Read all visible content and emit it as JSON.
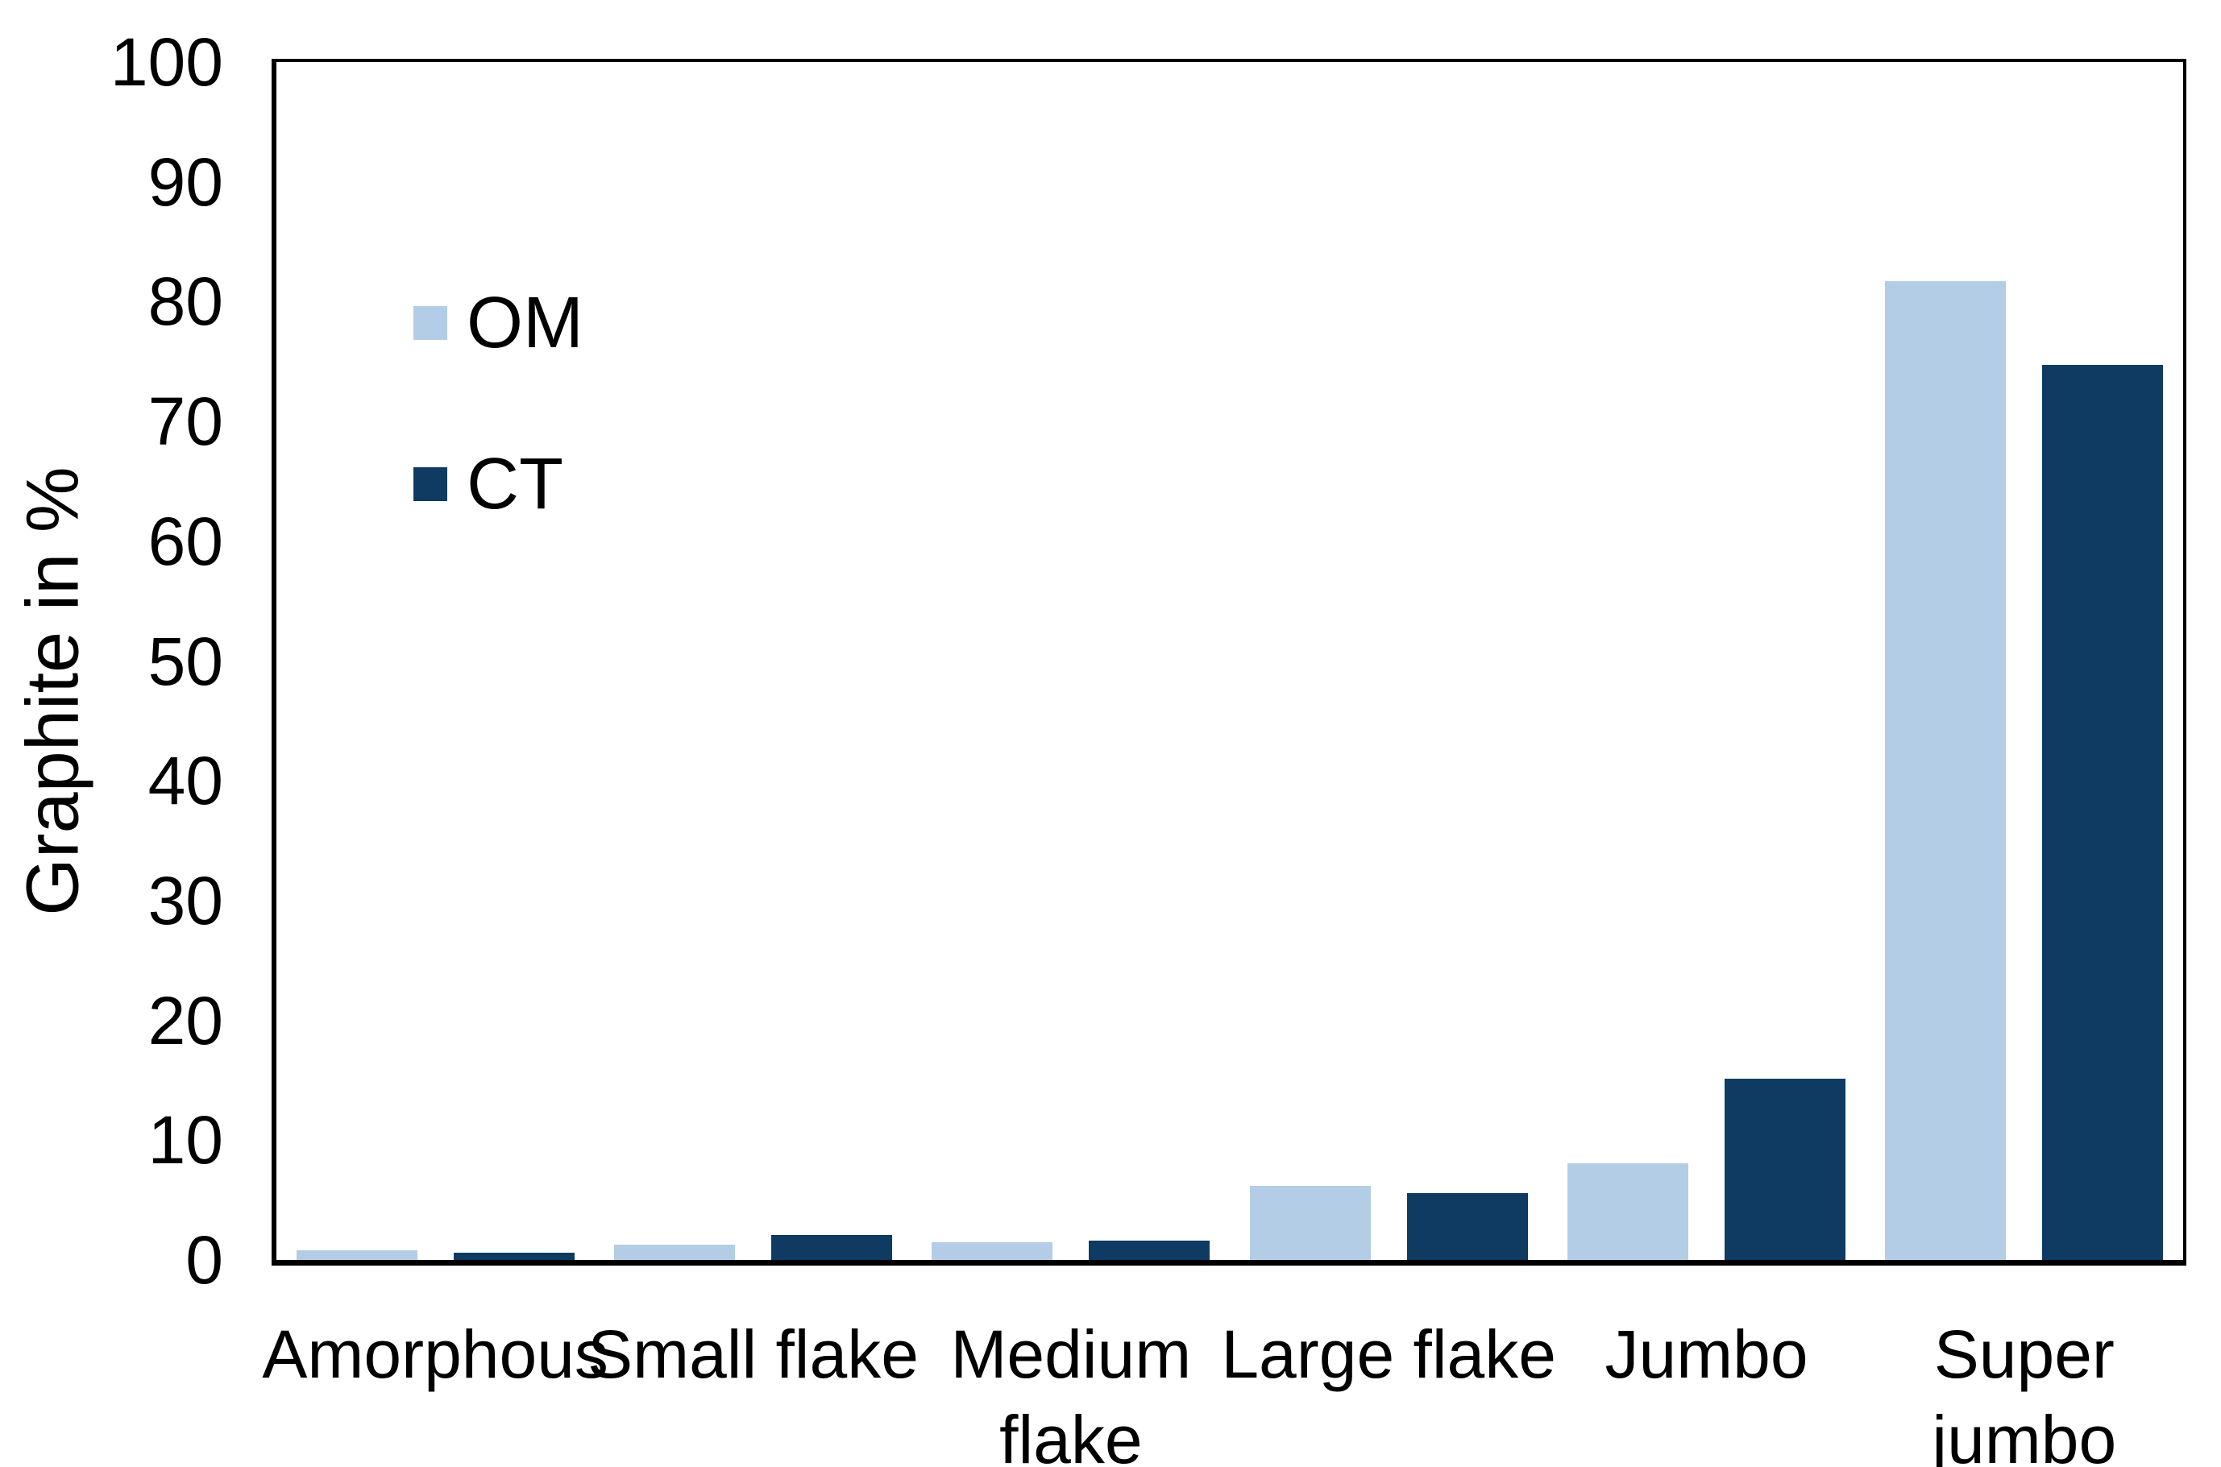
{
  "chart_data": {
    "type": "bar",
    "title": "",
    "xlabel": "",
    "ylabel": "Graphite in %",
    "ylim": [
      0,
      100
    ],
    "yticks": [
      0,
      10,
      20,
      30,
      40,
      50,
      60,
      70,
      80,
      90,
      100
    ],
    "grid": false,
    "legend_position": "inside-top-left",
    "background_color": "#ffffff",
    "axis_color": "#000000",
    "categories": [
      "Amorphous",
      "Small flake",
      "Medium flake",
      "Large flake",
      "Jumbo",
      "Super jumbo"
    ],
    "category_label_lines": [
      [
        "Amorphous"
      ],
      [
        "Small flake"
      ],
      [
        "Medium",
        "flake"
      ],
      [
        "Large flake"
      ],
      [
        "Jumbo"
      ],
      [
        "Super",
        "jumbo"
      ]
    ],
    "series": [
      {
        "name": "OM",
        "color": "#B4CDE6",
        "values": [
          0.8,
          1.3,
          1.5,
          6.2,
          8.1,
          81.7
        ]
      },
      {
        "name": "CT",
        "color": "#0F3A62",
        "values": [
          0.6,
          2.1,
          1.6,
          5.6,
          15.1,
          74.7
        ]
      }
    ]
  }
}
